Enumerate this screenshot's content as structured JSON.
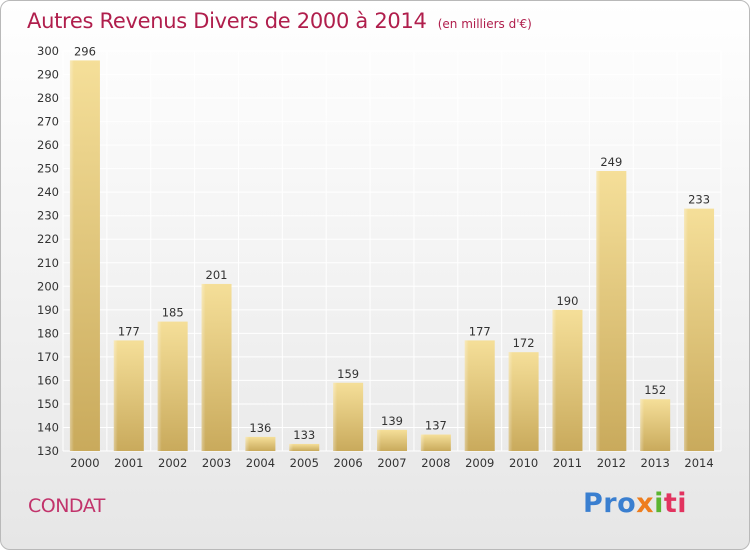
{
  "title": "Autres Revenus Divers de 2000 à 2014",
  "subtitle": "(en milliers d'€)",
  "town": "CONDAT",
  "logo": {
    "p1": "Pro",
    "p2": "x",
    "p3": "i",
    "p4": "ti"
  },
  "colors": {
    "title": "#b01e4c",
    "town": "#c2336b",
    "bar_light": "#f5df99",
    "bar_dark": "#c9aa5c",
    "grid": "#ffffff"
  },
  "chart_data": {
    "type": "bar",
    "title": "Autres Revenus Divers de 2000 à 2014",
    "subtitle": "(en milliers d'€)",
    "categories": [
      "2000",
      "2001",
      "2002",
      "2003",
      "2004",
      "2005",
      "2006",
      "2007",
      "2008",
      "2009",
      "2010",
      "2011",
      "2012",
      "2013",
      "2014"
    ],
    "values": [
      296,
      177,
      185,
      201,
      136,
      133,
      159,
      139,
      137,
      177,
      172,
      190,
      249,
      152,
      233
    ],
    "ylim": [
      130,
      300
    ],
    "yticks": [
      130,
      140,
      150,
      160,
      170,
      180,
      190,
      200,
      210,
      220,
      230,
      240,
      250,
      260,
      270,
      280,
      290,
      300
    ],
    "grid": true,
    "data_labels": true
  }
}
